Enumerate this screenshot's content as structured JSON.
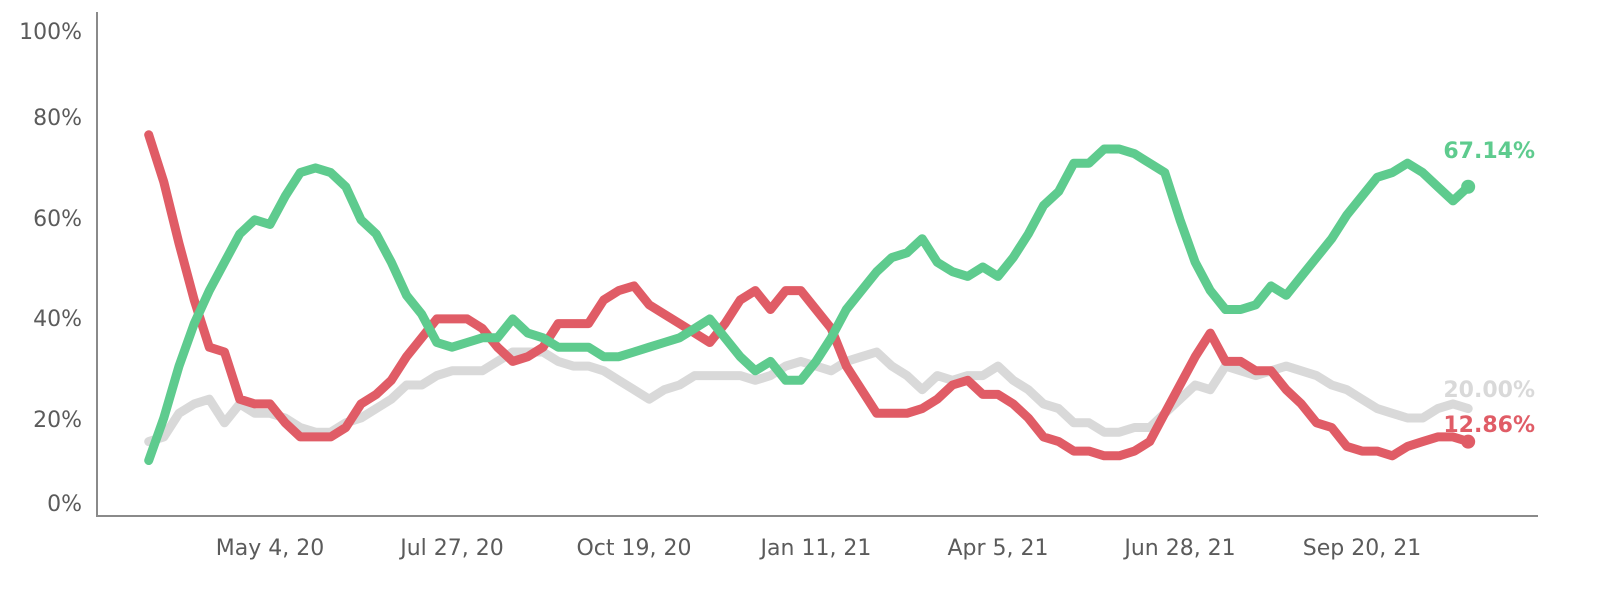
{
  "chart_data": {
    "type": "line",
    "title": "",
    "xlabel": "",
    "ylabel": "",
    "ylim": [
      0,
      100
    ],
    "y_ticks": [
      "0%",
      "20%",
      "40%",
      "60%",
      "80%",
      "100%"
    ],
    "x_ticks": [
      "May 4, 20",
      "Jul 27, 20",
      "Oct 19, 20",
      "Jan 11, 21",
      "Apr 5, 21",
      "Jun 28, 21",
      "Sep 20, 21"
    ],
    "grid": false,
    "legend": "none",
    "colors": {
      "green": "#5ecb8e",
      "red": "#e05c66",
      "gray": "#d9d9d9"
    },
    "series": [
      {
        "color": "gray",
        "end_label": "20.00%",
        "points": [
          [
            "2020-03-09",
            13
          ],
          [
            "2020-03-16",
            14
          ],
          [
            "2020-03-23",
            19
          ],
          [
            "2020-03-30",
            21
          ],
          [
            "2020-04-06",
            22
          ],
          [
            "2020-04-13",
            17
          ],
          [
            "2020-04-20",
            21
          ],
          [
            "2020-04-27",
            19
          ],
          [
            "2020-05-04",
            19
          ],
          [
            "2020-05-11",
            18
          ],
          [
            "2020-05-18",
            16
          ],
          [
            "2020-05-25",
            15
          ],
          [
            "2020-06-01",
            15
          ],
          [
            "2020-06-08",
            17
          ],
          [
            "2020-06-15",
            18
          ],
          [
            "2020-06-22",
            20
          ],
          [
            "2020-06-29",
            22
          ],
          [
            "2020-07-06",
            25
          ],
          [
            "2020-07-13",
            25
          ],
          [
            "2020-07-20",
            27
          ],
          [
            "2020-07-27",
            28
          ],
          [
            "2020-08-03",
            28
          ],
          [
            "2020-08-10",
            28
          ],
          [
            "2020-08-17",
            30
          ],
          [
            "2020-08-24",
            32
          ],
          [
            "2020-08-31",
            32
          ],
          [
            "2020-09-07",
            32
          ],
          [
            "2020-09-14",
            30
          ],
          [
            "2020-09-21",
            29
          ],
          [
            "2020-09-28",
            29
          ],
          [
            "2020-10-05",
            28
          ],
          [
            "2020-10-12",
            26
          ],
          [
            "2020-10-19",
            24
          ],
          [
            "2020-10-26",
            22
          ],
          [
            "2020-11-02",
            24
          ],
          [
            "2020-11-09",
            25
          ],
          [
            "2020-11-16",
            27
          ],
          [
            "2020-11-23",
            27
          ],
          [
            "2020-11-30",
            27
          ],
          [
            "2020-12-07",
            27
          ],
          [
            "2020-12-14",
            26
          ],
          [
            "2020-12-21",
            27
          ],
          [
            "2020-12-28",
            29
          ],
          [
            "2021-01-04",
            30
          ],
          [
            "2021-01-11",
            29
          ],
          [
            "2021-01-18",
            28
          ],
          [
            "2021-01-25",
            30
          ],
          [
            "2021-02-01",
            31
          ],
          [
            "2021-02-08",
            32
          ],
          [
            "2021-02-15",
            29
          ],
          [
            "2021-02-22",
            27
          ],
          [
            "2021-03-01",
            24
          ],
          [
            "2021-03-08",
            27
          ],
          [
            "2021-03-15",
            26
          ],
          [
            "2021-03-22",
            27
          ],
          [
            "2021-03-29",
            27
          ],
          [
            "2021-04-05",
            29
          ],
          [
            "2021-04-12",
            26
          ],
          [
            "2021-04-19",
            24
          ],
          [
            "2021-04-26",
            21
          ],
          [
            "2021-05-03",
            20
          ],
          [
            "2021-05-10",
            17
          ],
          [
            "2021-05-17",
            17
          ],
          [
            "2021-05-24",
            15
          ],
          [
            "2021-05-31",
            15
          ],
          [
            "2021-06-07",
            16
          ],
          [
            "2021-06-14",
            16
          ],
          [
            "2021-06-21",
            19
          ],
          [
            "2021-06-28",
            22
          ],
          [
            "2021-07-05",
            25
          ],
          [
            "2021-07-12",
            24
          ],
          [
            "2021-07-19",
            29
          ],
          [
            "2021-07-26",
            28
          ],
          [
            "2021-08-02",
            27
          ],
          [
            "2021-08-09",
            28
          ],
          [
            "2021-08-16",
            29
          ],
          [
            "2021-08-23",
            28
          ],
          [
            "2021-08-30",
            27
          ],
          [
            "2021-09-06",
            25
          ],
          [
            "2021-09-13",
            24
          ],
          [
            "2021-09-20",
            22
          ],
          [
            "2021-09-27",
            20
          ],
          [
            "2021-10-04",
            19
          ],
          [
            "2021-10-11",
            18
          ],
          [
            "2021-10-18",
            18
          ],
          [
            "2021-10-25",
            20
          ],
          [
            "2021-11-01",
            21
          ],
          [
            "2021-11-08",
            20
          ]
        ]
      },
      {
        "color": "red",
        "end_label": "12.86%",
        "points": [
          [
            "2020-03-09",
            78
          ],
          [
            "2020-03-16",
            68
          ],
          [
            "2020-03-23",
            55
          ],
          [
            "2020-03-30",
            43
          ],
          [
            "2020-04-06",
            33
          ],
          [
            "2020-04-13",
            32
          ],
          [
            "2020-04-20",
            22
          ],
          [
            "2020-04-27",
            21
          ],
          [
            "2020-05-04",
            21
          ],
          [
            "2020-05-11",
            17
          ],
          [
            "2020-05-18",
            14
          ],
          [
            "2020-05-25",
            14
          ],
          [
            "2020-06-01",
            14
          ],
          [
            "2020-06-08",
            16
          ],
          [
            "2020-06-15",
            21
          ],
          [
            "2020-06-22",
            23
          ],
          [
            "2020-06-29",
            26
          ],
          [
            "2020-07-06",
            31
          ],
          [
            "2020-07-13",
            35
          ],
          [
            "2020-07-20",
            39
          ],
          [
            "2020-07-27",
            39
          ],
          [
            "2020-08-03",
            39
          ],
          [
            "2020-08-10",
            37
          ],
          [
            "2020-08-17",
            33
          ],
          [
            "2020-08-24",
            30
          ],
          [
            "2020-08-31",
            31
          ],
          [
            "2020-09-07",
            33
          ],
          [
            "2020-09-14",
            38
          ],
          [
            "2020-09-21",
            38
          ],
          [
            "2020-09-28",
            38
          ],
          [
            "2020-10-05",
            43
          ],
          [
            "2020-10-12",
            45
          ],
          [
            "2020-10-19",
            46
          ],
          [
            "2020-10-26",
            42
          ],
          [
            "2020-11-02",
            40
          ],
          [
            "2020-11-09",
            38
          ],
          [
            "2020-11-16",
            36
          ],
          [
            "2020-11-23",
            34
          ],
          [
            "2020-11-30",
            38
          ],
          [
            "2020-12-07",
            43
          ],
          [
            "2020-12-14",
            45
          ],
          [
            "2020-12-21",
            41
          ],
          [
            "2020-12-28",
            45
          ],
          [
            "2021-01-04",
            45
          ],
          [
            "2021-01-11",
            41
          ],
          [
            "2021-01-18",
            37
          ],
          [
            "2021-01-25",
            29
          ],
          [
            "2021-02-01",
            24
          ],
          [
            "2021-02-08",
            19
          ],
          [
            "2021-02-15",
            19
          ],
          [
            "2021-02-22",
            19
          ],
          [
            "2021-03-01",
            20
          ],
          [
            "2021-03-08",
            22
          ],
          [
            "2021-03-15",
            25
          ],
          [
            "2021-03-22",
            26
          ],
          [
            "2021-03-29",
            23
          ],
          [
            "2021-04-05",
            23
          ],
          [
            "2021-04-12",
            21
          ],
          [
            "2021-04-19",
            18
          ],
          [
            "2021-04-26",
            14
          ],
          [
            "2021-05-03",
            13
          ],
          [
            "2021-05-10",
            11
          ],
          [
            "2021-05-17",
            11
          ],
          [
            "2021-05-24",
            10
          ],
          [
            "2021-05-31",
            10
          ],
          [
            "2021-06-07",
            11
          ],
          [
            "2021-06-14",
            13
          ],
          [
            "2021-06-21",
            19
          ],
          [
            "2021-06-28",
            25
          ],
          [
            "2021-07-05",
            31
          ],
          [
            "2021-07-12",
            36
          ],
          [
            "2021-07-19",
            30
          ],
          [
            "2021-07-26",
            30
          ],
          [
            "2021-08-02",
            28
          ],
          [
            "2021-08-09",
            28
          ],
          [
            "2021-08-16",
            24
          ],
          [
            "2021-08-23",
            21
          ],
          [
            "2021-08-30",
            17
          ],
          [
            "2021-09-06",
            16
          ],
          [
            "2021-09-13",
            12
          ],
          [
            "2021-09-20",
            11
          ],
          [
            "2021-09-27",
            11
          ],
          [
            "2021-10-04",
            10
          ],
          [
            "2021-10-11",
            12
          ],
          [
            "2021-10-18",
            13
          ],
          [
            "2021-10-25",
            14
          ],
          [
            "2021-11-01",
            14
          ],
          [
            "2021-11-08",
            13
          ]
        ]
      },
      {
        "color": "green",
        "end_label": "67.14%",
        "points": [
          [
            "2020-03-09",
            9
          ],
          [
            "2020-03-16",
            18
          ],
          [
            "2020-03-23",
            29
          ],
          [
            "2020-03-30",
            38
          ],
          [
            "2020-04-06",
            45
          ],
          [
            "2020-04-13",
            51
          ],
          [
            "2020-04-20",
            57
          ],
          [
            "2020-04-27",
            60
          ],
          [
            "2020-05-04",
            59
          ],
          [
            "2020-05-11",
            65
          ],
          [
            "2020-05-18",
            70
          ],
          [
            "2020-05-25",
            71
          ],
          [
            "2020-06-01",
            70
          ],
          [
            "2020-06-08",
            67
          ],
          [
            "2020-06-15",
            60
          ],
          [
            "2020-06-22",
            57
          ],
          [
            "2020-06-29",
            51
          ],
          [
            "2020-07-06",
            44
          ],
          [
            "2020-07-13",
            40
          ],
          [
            "2020-07-20",
            34
          ],
          [
            "2020-07-27",
            33
          ],
          [
            "2020-08-03",
            34
          ],
          [
            "2020-08-10",
            35
          ],
          [
            "2020-08-17",
            35
          ],
          [
            "2020-08-24",
            39
          ],
          [
            "2020-08-31",
            36
          ],
          [
            "2020-09-07",
            35
          ],
          [
            "2020-09-14",
            33
          ],
          [
            "2020-09-21",
            33
          ],
          [
            "2020-09-28",
            33
          ],
          [
            "2020-10-05",
            31
          ],
          [
            "2020-10-12",
            31
          ],
          [
            "2020-10-19",
            32
          ],
          [
            "2020-10-26",
            33
          ],
          [
            "2020-11-02",
            34
          ],
          [
            "2020-11-09",
            35
          ],
          [
            "2020-11-16",
            37
          ],
          [
            "2020-11-23",
            39
          ],
          [
            "2020-11-30",
            35
          ],
          [
            "2020-12-07",
            31
          ],
          [
            "2020-12-14",
            28
          ],
          [
            "2020-12-21",
            30
          ],
          [
            "2020-12-28",
            26
          ],
          [
            "2021-01-04",
            26
          ],
          [
            "2021-01-11",
            30
          ],
          [
            "2021-01-18",
            35
          ],
          [
            "2021-01-25",
            41
          ],
          [
            "2021-02-01",
            45
          ],
          [
            "2021-02-08",
            49
          ],
          [
            "2021-02-15",
            52
          ],
          [
            "2021-02-22",
            53
          ],
          [
            "2021-03-01",
            56
          ],
          [
            "2021-03-08",
            51
          ],
          [
            "2021-03-15",
            49
          ],
          [
            "2021-03-22",
            48
          ],
          [
            "2021-03-29",
            50
          ],
          [
            "2021-04-05",
            48
          ],
          [
            "2021-04-12",
            52
          ],
          [
            "2021-04-19",
            57
          ],
          [
            "2021-04-26",
            63
          ],
          [
            "2021-05-03",
            66
          ],
          [
            "2021-05-10",
            72
          ],
          [
            "2021-05-17",
            72
          ],
          [
            "2021-05-24",
            75
          ],
          [
            "2021-05-31",
            75
          ],
          [
            "2021-06-07",
            74
          ],
          [
            "2021-06-14",
            72
          ],
          [
            "2021-06-21",
            70
          ],
          [
            "2021-06-28",
            60
          ],
          [
            "2021-07-05",
            51
          ],
          [
            "2021-07-12",
            45
          ],
          [
            "2021-07-19",
            41
          ],
          [
            "2021-07-26",
            41
          ],
          [
            "2021-08-02",
            42
          ],
          [
            "2021-08-09",
            46
          ],
          [
            "2021-08-16",
            44
          ],
          [
            "2021-08-23",
            48
          ],
          [
            "2021-08-30",
            52
          ],
          [
            "2021-09-06",
            56
          ],
          [
            "2021-09-13",
            61
          ],
          [
            "2021-09-20",
            65
          ],
          [
            "2021-09-27",
            69
          ],
          [
            "2021-10-04",
            70
          ],
          [
            "2021-10-11",
            72
          ],
          [
            "2021-10-18",
            70
          ],
          [
            "2021-10-25",
            67
          ],
          [
            "2021-11-01",
            64
          ],
          [
            "2021-11-08",
            67
          ]
        ]
      }
    ]
  }
}
